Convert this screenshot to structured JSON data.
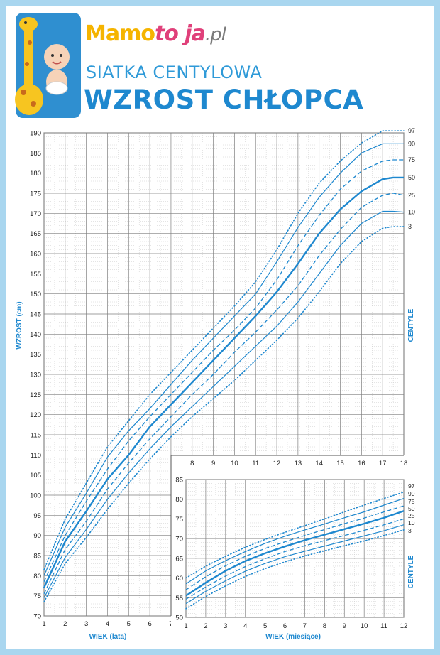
{
  "header": {
    "logo": {
      "part1": "Mamo",
      "part2": "to ja",
      "part3": ".pl"
    },
    "subtitle": "SIATKA CENTYLOWA",
    "title": "WZROST CHŁOPCA"
  },
  "colors": {
    "line": "#1e88cf",
    "grid": "#7f7f7f",
    "minor": "#c8c8c8",
    "frame": "#a9d6ef",
    "text": "#1e88cf"
  },
  "chart_data": [
    {
      "type": "line",
      "title": "",
      "xlabel": "WIEK (lata)",
      "ylabel": "WZROST (cm)",
      "right_label": "CENTYLE",
      "xlim": [
        1,
        18
      ],
      "ylim": [
        70,
        190
      ],
      "x_ticks": [
        1,
        2,
        3,
        4,
        5,
        6,
        7,
        8,
        9,
        10,
        11,
        12,
        13,
        14,
        15,
        16,
        17,
        18
      ],
      "y_ticks": [
        70,
        75,
        80,
        85,
        90,
        95,
        100,
        105,
        110,
        115,
        120,
        125,
        130,
        135,
        140,
        145,
        150,
        155,
        160,
        165,
        170,
        175,
        180,
        185,
        190
      ],
      "grid": true,
      "x": [
        1,
        2,
        3,
        4,
        5,
        6,
        7,
        8,
        9,
        10,
        11,
        12,
        13,
        14,
        15,
        16,
        17,
        17.5,
        18
      ],
      "series": [
        {
          "name": "97",
          "values": [
            81.5,
            94,
            103,
            112,
            118.5,
            125,
            130.5,
            136,
            141.5,
            147,
            153,
            161,
            170,
            177.5,
            183,
            187.5,
            190.5,
            190.5,
            190.5
          ]
        },
        {
          "name": "90",
          "values": [
            80,
            92,
            100.5,
            109.5,
            116,
            121.5,
            127.5,
            133.5,
            139,
            144.5,
            150,
            158,
            166.5,
            174,
            180,
            185,
            187.3,
            187.3,
            187.3
          ]
        },
        {
          "name": "75",
          "values": [
            78.5,
            90,
            98.5,
            106.5,
            113.5,
            119.5,
            125,
            130.5,
            136,
            141,
            146.5,
            153.5,
            162,
            169.5,
            176,
            180.5,
            183,
            183.3,
            183.3
          ]
        },
        {
          "name": "50",
          "values": [
            77,
            88.5,
            96,
            104,
            110,
            117,
            122.5,
            128,
            133.5,
            139,
            144.5,
            150.5,
            157.5,
            165,
            171,
            175.5,
            178.5,
            178.9,
            178.9
          ]
        },
        {
          "name": "25",
          "values": [
            75.5,
            86.5,
            93.5,
            101.5,
            108,
            114,
            119.5,
            125,
            130,
            135.5,
            140.5,
            146,
            152,
            159.5,
            166,
            171.5,
            174.5,
            175,
            174.5
          ]
        },
        {
          "name": "10",
          "values": [
            74.5,
            84.5,
            91.5,
            99,
            105.5,
            111.5,
            117,
            122,
            127,
            132,
            137,
            142,
            148,
            155,
            162,
            167.5,
            170.5,
            170.5,
            170.3
          ]
        },
        {
          "name": "3",
          "values": [
            73.5,
            83,
            89.5,
            96.5,
            103,
            109,
            114.5,
            119.5,
            124,
            128.5,
            133.5,
            138.5,
            144,
            150.5,
            157.5,
            163,
            166.3,
            166.7,
            166.7
          ]
        }
      ],
      "styles": {
        "97": "dotted",
        "90": "solid",
        "75": "dashed",
        "50": "bold",
        "25": "dashed",
        "10": "solid",
        "3": "dotted"
      }
    },
    {
      "type": "line",
      "title": "",
      "xlabel": "WIEK (miesiące)",
      "ylabel": "",
      "right_label": "CENTYLE",
      "xlim": [
        1,
        12
      ],
      "ylim": [
        50,
        85
      ],
      "x_ticks": [
        1,
        2,
        3,
        4,
        5,
        6,
        7,
        8,
        9,
        10,
        11,
        12
      ],
      "y_ticks": [
        50,
        55,
        60,
        65,
        70,
        75,
        80,
        85
      ],
      "grid": true,
      "x": [
        1,
        2,
        3,
        4,
        5,
        6,
        7,
        8,
        9,
        10,
        11,
        12
      ],
      "series": [
        {
          "name": "97",
          "values": [
            60,
            63,
            65.5,
            67.8,
            69.8,
            71.6,
            73.3,
            75,
            76.8,
            78.5,
            80.2,
            81.8
          ]
        },
        {
          "name": "90",
          "values": [
            58.5,
            61.8,
            64.4,
            66.7,
            68.8,
            70.6,
            72.2,
            73.7,
            75.3,
            76.8,
            78.5,
            80.2
          ]
        },
        {
          "name": "75",
          "values": [
            57,
            60.3,
            63.1,
            65.5,
            67.5,
            69.2,
            70.8,
            72.3,
            73.8,
            75.2,
            76.8,
            78.3
          ]
        },
        {
          "name": "50",
          "values": [
            55.5,
            58.8,
            61.8,
            64.3,
            66.3,
            68,
            69.6,
            71,
            72.4,
            73.8,
            75.3,
            77
          ]
        },
        {
          "name": "25",
          "values": [
            54.6,
            57.7,
            60.5,
            62.9,
            64.9,
            66.7,
            68.2,
            69.5,
            70.8,
            72.1,
            73.5,
            75
          ]
        },
        {
          "name": "10",
          "values": [
            53.5,
            56.6,
            59.3,
            61.7,
            63.7,
            65.4,
            66.8,
            68.1,
            69.4,
            70.7,
            72,
            73.5
          ]
        },
        {
          "name": "3",
          "values": [
            52.2,
            55.3,
            58,
            60.4,
            62.4,
            64.1,
            65.6,
            66.9,
            68.2,
            69.4,
            70.8,
            72.2
          ]
        }
      ],
      "styles": {
        "97": "dotted",
        "90": "solid",
        "75": "dashed",
        "50": "bold",
        "25": "dashed",
        "10": "solid",
        "3": "dotted"
      }
    }
  ]
}
